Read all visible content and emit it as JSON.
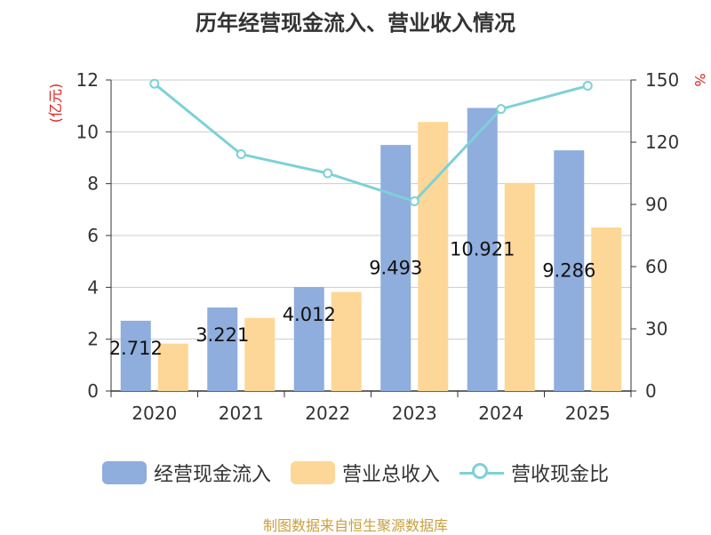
{
  "colors": {
    "bar1": "#8faddd",
    "bar2": "#fdd797",
    "line": "#7dd1d6",
    "axis": "#333333",
    "grid": "#cccccc",
    "unit_label": "#e02020",
    "source": "#c8a040"
  },
  "chart_data": {
    "type": "bar",
    "title": "历年经营现金流入、营业收入情况",
    "categories": [
      "2020",
      "2021",
      "2022",
      "2023",
      "2024",
      "2025"
    ],
    "series": [
      {
        "name": "经营现金流入",
        "type": "bar",
        "axis": "left",
        "values": [
          2.712,
          3.221,
          4.012,
          9.493,
          10.921,
          9.286
        ],
        "labels": [
          "2.712",
          "3.221",
          "4.012",
          "9.493",
          "10.921",
          "9.286"
        ]
      },
      {
        "name": "营业总收入",
        "type": "bar",
        "axis": "left",
        "values": [
          1.83,
          2.82,
          3.82,
          10.38,
          8.03,
          6.31
        ]
      },
      {
        "name": "营收现金比",
        "type": "line",
        "axis": "right",
        "values": [
          148.2,
          114.2,
          105.0,
          91.5,
          136.0,
          147.2
        ]
      }
    ],
    "y_left": {
      "label": "(亿元)",
      "ylim": [
        0,
        12
      ],
      "ticks": [
        "0",
        "2",
        "4",
        "6",
        "8",
        "10",
        "12"
      ]
    },
    "y_right": {
      "label": "%",
      "ylim": [
        0,
        150
      ],
      "ticks": [
        "0",
        "30",
        "60",
        "90",
        "120",
        "150"
      ]
    },
    "legend_position": "bottom",
    "grid": true
  },
  "legend": {
    "items": [
      "经营现金流入",
      "营业总收入",
      "营收现金比"
    ]
  },
  "source": "制图数据来自恒生聚源数据库"
}
